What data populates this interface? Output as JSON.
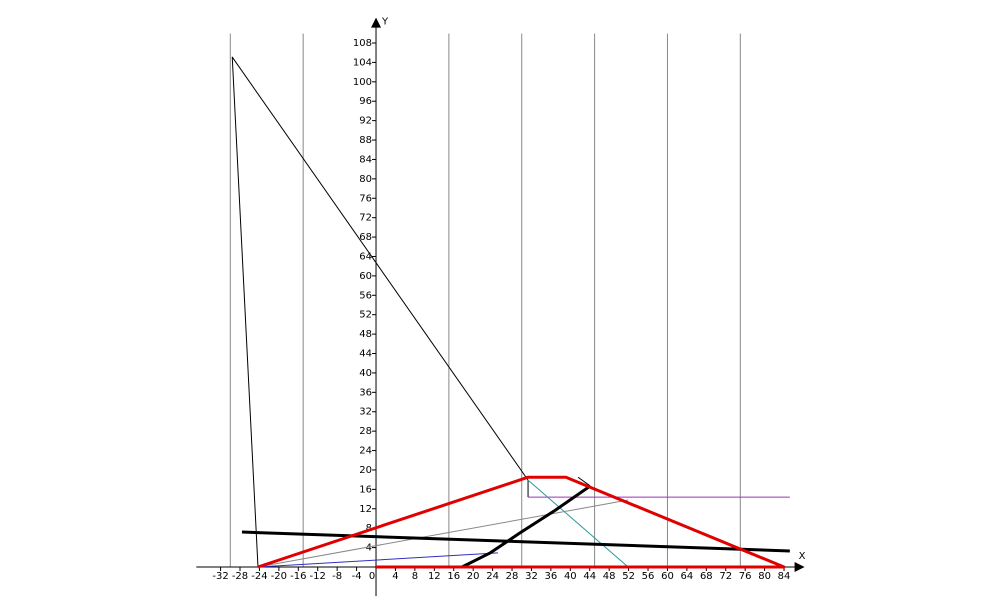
{
  "chart_data": {
    "type": "line",
    "x_label": "X",
    "y_label": "Y",
    "xlim": [
      -37,
      87
    ],
    "ylim": [
      -6,
      112
    ],
    "xticks": [
      -32,
      -28,
      -24,
      -20,
      -16,
      -12,
      -8,
      -4,
      0,
      4,
      8,
      12,
      16,
      20,
      24,
      28,
      32,
      36,
      40,
      44,
      48,
      52,
      56,
      60,
      64,
      68,
      72,
      76,
      80,
      84
    ],
    "yticks": [
      4,
      8,
      12,
      16,
      20,
      24,
      28,
      32,
      36,
      40,
      44,
      48,
      52,
      56,
      60,
      64,
      68,
      72,
      76,
      80,
      84,
      88,
      92,
      96,
      100,
      104,
      108
    ],
    "xgrid": [
      -30,
      -15,
      15,
      30,
      45,
      60,
      75
    ],
    "grid_color": "#888888",
    "series": [
      {
        "color": "#000000",
        "line_width": 1,
        "x": [
          -24.3,
          -29.6,
          31.3,
          31.3
        ],
        "values": [
          0,
          105.1,
          17.9,
          14.4
        ]
      },
      {
        "color": "#9b30c0",
        "line_width": 1,
        "x": [
          31.3,
          85.2
        ],
        "values": [
          14.4,
          14.4
        ]
      },
      {
        "color": "#2a9a9a",
        "line_width": 1,
        "x": [
          31.3,
          51.9
        ],
        "values": [
          17.9,
          0
        ]
      },
      {
        "color": "#888888",
        "line_width": 1,
        "x": [
          -24.3,
          51.9
        ],
        "values": [
          0,
          13.8
        ]
      },
      {
        "color": "#3030c0",
        "line_width": 1,
        "x": [
          -24.3,
          25.1
        ],
        "values": [
          0,
          2.9
        ]
      },
      {
        "color": "#000000",
        "line_width": 3,
        "x": [
          -27.6,
          85.2
        ],
        "values": [
          7.2,
          3.3
        ]
      },
      {
        "color": "#000000",
        "line_width": 3,
        "x": [
          17.7,
          23.5,
          29.6,
          36.9,
          44.1
        ],
        "values": [
          0,
          2.9,
          7.0,
          11.7,
          16.7
        ]
      },
      {
        "color": "#000000",
        "line_width": 1,
        "x": [
          41.6,
          44.1
        ],
        "values": [
          18.5,
          16.7
        ]
      },
      {
        "color": "#e00000",
        "line_width": 3,
        "x": [
          -24.3,
          31.3,
          39.1,
          84,
          0
        ],
        "values": [
          0,
          18.5,
          18.5,
          0,
          0
        ]
      }
    ]
  }
}
